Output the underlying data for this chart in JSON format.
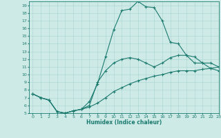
{
  "xlabel": "Humidex (Indice chaleur)",
  "bg_color": "#ceeae7",
  "line_color": "#1a7a6e",
  "grid_color": "#aad4d0",
  "xlim": [
    -0.5,
    23
  ],
  "ylim": [
    5,
    19.5
  ],
  "xticks": [
    0,
    1,
    2,
    3,
    4,
    5,
    6,
    7,
    8,
    9,
    10,
    11,
    12,
    13,
    14,
    15,
    16,
    17,
    18,
    19,
    20,
    21,
    22,
    23
  ],
  "yticks": [
    5,
    6,
    7,
    8,
    9,
    10,
    11,
    12,
    13,
    14,
    15,
    16,
    17,
    18,
    19
  ],
  "line1_x": [
    0,
    1,
    2,
    3,
    4,
    5,
    6,
    7,
    8,
    9,
    10,
    11,
    12,
    13,
    14,
    15,
    16,
    17,
    18,
    19,
    20,
    21,
    22,
    23
  ],
  "line1_y": [
    7.5,
    7.0,
    6.7,
    5.2,
    5.0,
    5.3,
    5.5,
    6.5,
    8.8,
    12.3,
    15.8,
    18.3,
    18.5,
    19.5,
    18.8,
    18.7,
    17.0,
    14.2,
    14.0,
    12.5,
    11.5,
    11.5,
    10.8,
    10.5
  ],
  "line2_x": [
    0,
    1,
    2,
    3,
    4,
    5,
    6,
    7,
    8,
    9,
    10,
    11,
    12,
    13,
    14,
    15,
    16,
    17,
    18,
    19,
    20,
    21,
    22,
    23
  ],
  "line2_y": [
    7.5,
    7.0,
    6.7,
    5.2,
    5.0,
    5.3,
    5.5,
    6.0,
    9.0,
    10.5,
    11.5,
    12.0,
    12.2,
    12.0,
    11.5,
    11.0,
    11.5,
    12.2,
    12.5,
    12.5,
    12.3,
    11.5,
    11.5,
    11.0
  ],
  "line3_x": [
    0,
    1,
    2,
    3,
    4,
    5,
    6,
    7,
    8,
    9,
    10,
    11,
    12,
    13,
    14,
    15,
    16,
    17,
    18,
    19,
    20,
    21,
    22,
    23
  ],
  "line3_y": [
    7.5,
    7.0,
    6.7,
    5.2,
    5.0,
    5.3,
    5.5,
    5.8,
    6.3,
    7.0,
    7.8,
    8.3,
    8.8,
    9.2,
    9.5,
    9.8,
    10.0,
    10.3,
    10.5,
    10.5,
    10.5,
    10.7,
    10.8,
    11.0
  ]
}
